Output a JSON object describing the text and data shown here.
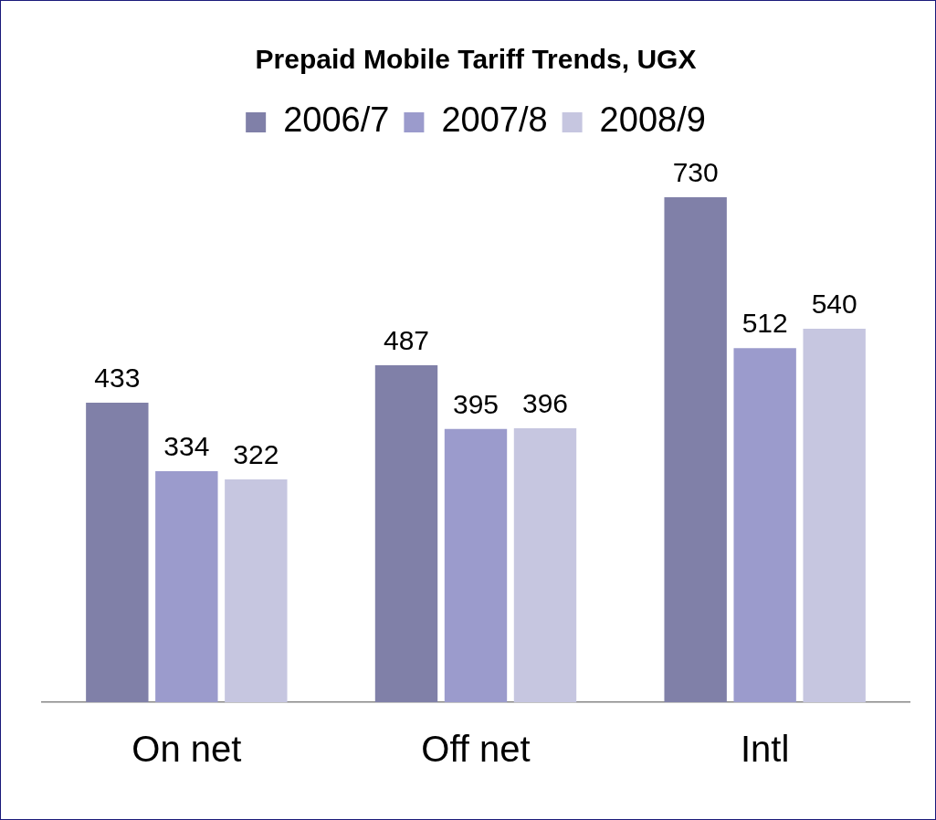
{
  "chart_data": {
    "type": "bar",
    "title": "Prepaid Mobile Tariff Trends, UGX",
    "categories": [
      "On net",
      "Off net",
      "Intl"
    ],
    "series": [
      {
        "name": "2006/7",
        "color": "#8080a8",
        "values": [
          433,
          487,
          730
        ]
      },
      {
        "name": "2007/8",
        "color": "#9b9bcc",
        "values": [
          334,
          395,
          512
        ]
      },
      {
        "name": "2008/9",
        "color": "#c6c6e0",
        "values": [
          322,
          396,
          540
        ]
      }
    ],
    "data_labels": true,
    "legend": "top"
  }
}
